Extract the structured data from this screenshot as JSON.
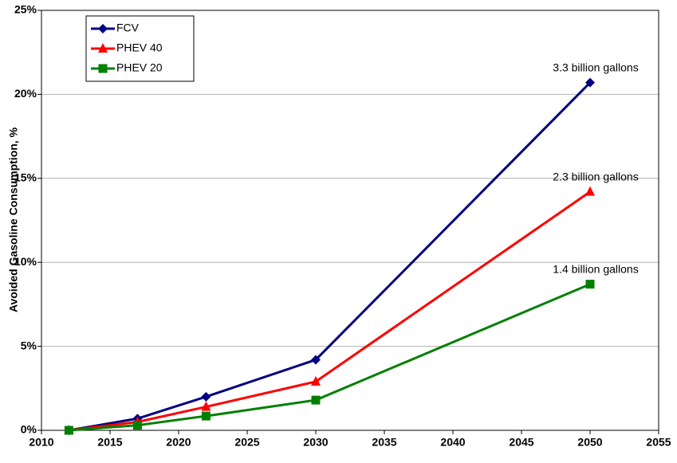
{
  "chart_data": {
    "type": "line",
    "ylabel": "Avoided Gasoline Consumption, %",
    "x": [
      2012,
      2017,
      2022,
      2030,
      2050
    ],
    "series": [
      {
        "name": "FCV",
        "color": "#000080",
        "marker": "diamond",
        "values": [
          0,
          0.7,
          2.0,
          4.2,
          20.7
        ]
      },
      {
        "name": "PHEV 40",
        "color": "#ff0000",
        "marker": "triangle",
        "values": [
          0,
          0.5,
          1.4,
          2.9,
          14.2
        ]
      },
      {
        "name": "PHEV 20",
        "color": "#008000",
        "marker": "square",
        "values": [
          0,
          0.3,
          0.85,
          1.8,
          8.7
        ]
      }
    ],
    "annotations": [
      "3.3 billion gallons",
      "2.3 billion gallons",
      "1.4 billion gallons"
    ],
    "xlim": [
      2010,
      2055
    ],
    "xticks": [
      2010,
      2015,
      2020,
      2025,
      2030,
      2035,
      2040,
      2045,
      2050,
      2055
    ],
    "ylim": [
      0,
      25
    ],
    "yticks": [
      {
        "value": 0,
        "label": "0%"
      },
      {
        "value": 5,
        "label": "5%"
      },
      {
        "value": 10,
        "label": "10%"
      },
      {
        "value": 15,
        "label": "15%"
      },
      {
        "value": 20,
        "label": "20%"
      },
      {
        "value": 25,
        "label": "25%"
      }
    ],
    "grid": true,
    "legend": "upper left"
  }
}
